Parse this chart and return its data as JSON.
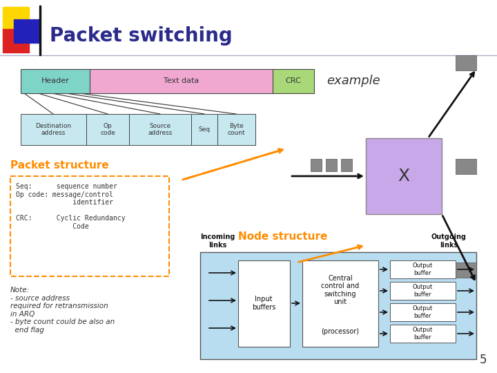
{
  "title": "Packet switching",
  "title_color": "#2b2b8b",
  "title_fontsize": 20,
  "bg_color": "#ffffff",
  "slide_number": "5",
  "packet_bar1_label": "Header",
  "packet_bar1_color": "#7fd4c8",
  "packet_bar2_label": "Text data",
  "packet_bar2_color": "#f0a8d0",
  "packet_bar3_label": "CRC",
  "packet_bar3_color": "#a8d878",
  "example_label": "example",
  "header_row_labels": [
    "Destination\naddress",
    "Op\ncode",
    "Source\naddress",
    "Seq",
    "Byte\ncount"
  ],
  "header_row_color": "#c8e8f0",
  "packet_structure_title": "Packet structure",
  "packet_structure_color": "#ff8c00",
  "node_structure_title": "Node structure",
  "note_text": "Note:\n- source address\nrequired for retransmission\nin ARQ\n- byte count could be also an\n  end flag"
}
